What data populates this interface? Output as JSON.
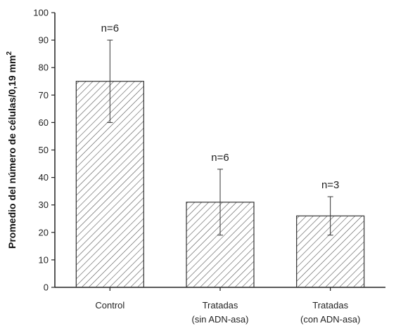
{
  "chart_data": {
    "type": "bar",
    "categories": [
      [
        "Control"
      ],
      [
        "Tratadas",
        "(sin ADN-asa)"
      ],
      [
        "Tratadas",
        "(con ADN-asa)"
      ]
    ],
    "values": [
      75,
      31,
      26
    ],
    "error_low": [
      60,
      19,
      19
    ],
    "error_high": [
      90,
      43,
      33
    ],
    "annotations": [
      "n=6",
      "n=6",
      "n=3"
    ],
    "ylabel": "Promedio del número de células/0,19 mm",
    "ylabel_superscript": "2",
    "xlabel": "",
    "ylim": [
      0,
      100
    ],
    "yticks": [
      0,
      10,
      20,
      30,
      40,
      50,
      60,
      70,
      80,
      90,
      100
    ],
    "grid": false,
    "bar_fill": "hatched",
    "colors": {
      "bar_stroke": "#333333",
      "hatch": "#555555",
      "axis": "#222222"
    }
  }
}
